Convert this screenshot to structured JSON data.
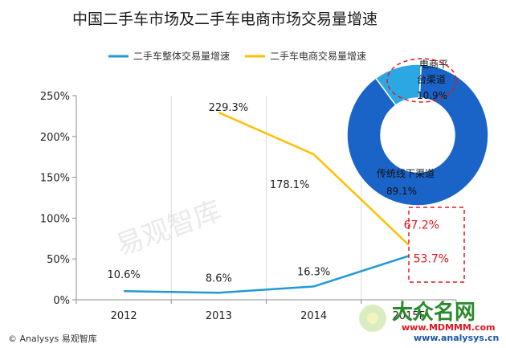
{
  "title": "中国二手车市场及二手车电商市场交易量增速",
  "footer": "© Analysys 易观智库",
  "watermark": "易观智库",
  "logo": {
    "name": "大众名网",
    "url1": "www.MDMMM.com",
    "url2": "www.analysys.cn"
  },
  "colors": {
    "overall": "#1f9ad6",
    "ecommerce": "#ffc000",
    "donut_main": "#1a63c7",
    "donut_small": "#2ba8e4",
    "highlight": "#e8141b"
  },
  "chart_data": {
    "type": "line",
    "categories": [
      "2012",
      "2013",
      "2014",
      "2015F"
    ],
    "ylim": [
      0,
      250
    ],
    "yticks": [
      0,
      50,
      100,
      150,
      200,
      250
    ],
    "ytick_labels": [
      "0%",
      "50%",
      "100%",
      "150%",
      "200%",
      "250%"
    ],
    "grid": "vertical",
    "legend_position": "top",
    "series": [
      {
        "name": "二手车整体交易量增速",
        "values": [
          10.6,
          8.6,
          16.3,
          53.7
        ],
        "labels": [
          "10.6%",
          "8.6%",
          "16.3%",
          "53.7%"
        ]
      },
      {
        "name": "二手车电商交易量增速",
        "values": [
          null,
          229.3,
          178.1,
          67.2
        ],
        "labels": [
          "",
          "229.3%",
          "178.1%",
          "67.2%"
        ]
      }
    ],
    "inset": {
      "type": "pie",
      "slices": [
        {
          "label_line1": "电商平",
          "label_line2": "台渠道",
          "value": 10.9,
          "label": "10.9%"
        },
        {
          "label_line1": "传统线下渠道",
          "label_line2": "",
          "value": 89.1,
          "label": "89.1%"
        }
      ]
    }
  }
}
